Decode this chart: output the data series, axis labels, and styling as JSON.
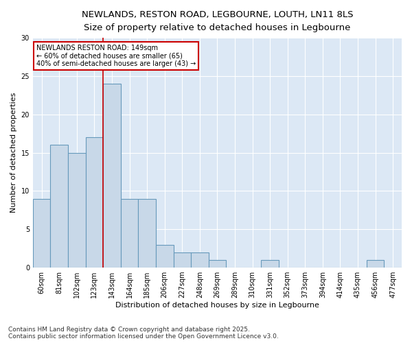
{
  "title_line1": "NEWLANDS, RESTON ROAD, LEGBOURNE, LOUTH, LN11 8LS",
  "title_line2": "Size of property relative to detached houses in Legbourne",
  "categories": [
    "60sqm",
    "81sqm",
    "102sqm",
    "123sqm",
    "143sqm",
    "164sqm",
    "185sqm",
    "206sqm",
    "227sqm",
    "248sqm",
    "269sqm",
    "289sqm",
    "310sqm",
    "331sqm",
    "352sqm",
    "373sqm",
    "394sqm",
    "414sqm",
    "435sqm",
    "456sqm",
    "477sqm"
  ],
  "values": [
    9,
    16,
    15,
    17,
    24,
    9,
    9,
    3,
    2,
    2,
    1,
    0,
    0,
    1,
    0,
    0,
    0,
    0,
    0,
    1,
    0
  ],
  "highlight_index": 4,
  "bar_color": "#c8d8e8",
  "bar_edge_color": "#6699bb",
  "highlight_line_color": "#cc0000",
  "ylabel": "Number of detached properties",
  "xlabel": "Distribution of detached houses by size in Legbourne",
  "ylim": [
    0,
    30
  ],
  "yticks": [
    0,
    5,
    10,
    15,
    20,
    25,
    30
  ],
  "annotation_title": "NEWLANDS RESTON ROAD: 149sqm",
  "annotation_line1": "← 60% of detached houses are smaller (65)",
  "annotation_line2": "40% of semi-detached houses are larger (43) →",
  "annotation_box_facecolor": "#ffffff",
  "annotation_box_edgecolor": "#cc0000",
  "plot_bg_color": "#dce8f5",
  "figure_bg_color": "#ffffff",
  "grid_color": "#ffffff",
  "footer_line1": "Contains HM Land Registry data © Crown copyright and database right 2025.",
  "footer_line2": "Contains public sector information licensed under the Open Government Licence v3.0.",
  "title_fontsize": 9.5,
  "subtitle_fontsize": 8.5,
  "axis_label_fontsize": 8,
  "tick_fontsize": 7,
  "annotation_fontsize": 7,
  "footer_fontsize": 6.5
}
